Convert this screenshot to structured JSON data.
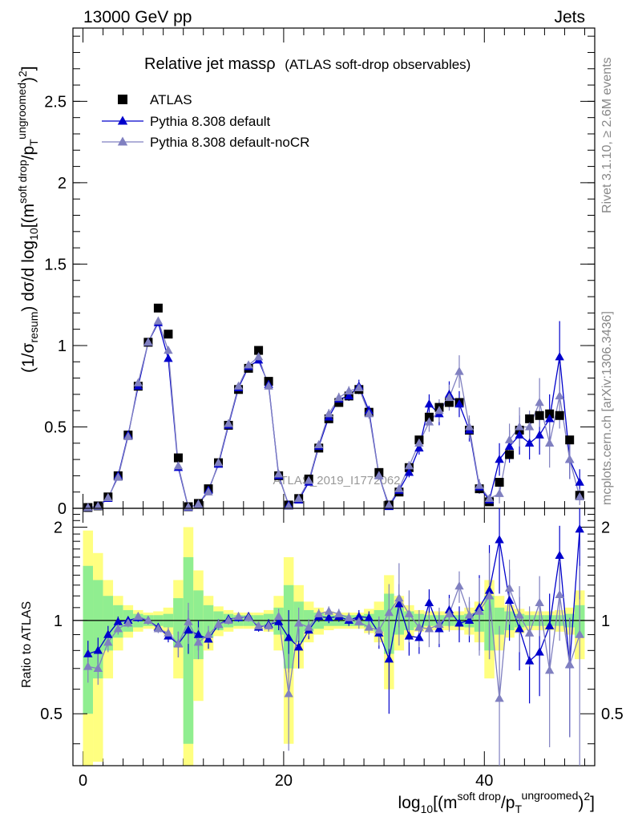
{
  "header": {
    "energy_label": "13000 GeV pp",
    "process_label": "Jets"
  },
  "side_labels": {
    "rivet": "Rivet 3.1.10, ≥ 2.6M events",
    "mcplots": "mcplots.cern.ch [arXiv:1306.3436]"
  },
  "watermark": "ATLAS_2019_I1772062",
  "chart_data": {
    "type": "scatter",
    "title": "Relative jet massρ",
    "subtitle": "(ATLAS soft-drop observables)",
    "ylabel": "(1/σresum) dσ/d log10[(m^{soft drop}/p_T^{ungroomed})^2]",
    "ylabel_parts": {
      "pre": "(1/σ",
      "sub1": "resum",
      "mid": ") dσ/d log",
      "sub2": "10",
      "mid2": "[(m",
      "sup1": "soft drop",
      "mid3": "/p",
      "sub3": "T",
      "sup2": "ungroomed",
      "mid4": ")",
      "sup3": "2",
      "post": "]"
    },
    "xlabel": "log10[(m^{soft drop}/p_T^{ungroomed})^2]",
    "xlabel_parts": {
      "pre": "log",
      "sub1": "10",
      "mid": "[(m",
      "sup1": "soft drop",
      "mid2": "/p",
      "sub2": "T",
      "sup2": "ungroomed",
      "mid3": ")",
      "sup3": "2",
      "post": "]"
    },
    "ratio_ylabel": "Ratio to ATLAS",
    "xlim": [
      -1,
      51
    ],
    "ylim": [
      0,
      2.95
    ],
    "ratio_ylim": [
      0.34,
      2.3
    ],
    "x_ticks": [
      0,
      20,
      40
    ],
    "y_ticks": [
      0,
      0.5,
      1,
      1.5,
      2,
      2.5
    ],
    "y_tick_labels": [
      "0",
      "0.5",
      "1",
      "1.5",
      "2",
      "2.5"
    ],
    "ratio_ticks": [
      0.5,
      1,
      2
    ],
    "ratio_tick_labels": [
      "0.5",
      "1",
      "2"
    ],
    "legend_position": "top-left",
    "series": [
      {
        "name": "ATLAS",
        "color": "#000000",
        "marker": "square",
        "x": [
          0.5,
          1.5,
          2.5,
          3.5,
          4.5,
          5.5,
          6.5,
          7.5,
          8.5,
          9.5,
          10.5,
          11.5,
          12.5,
          13.5,
          14.5,
          15.5,
          16.5,
          17.5,
          18.5,
          19.5,
          20.5,
          21.5,
          22.5,
          23.5,
          24.5,
          25.5,
          26.5,
          27.5,
          28.5,
          29.5,
          30.5,
          31.5,
          32.5,
          33.5,
          34.5,
          35.5,
          36.5,
          37.5,
          38.5,
          39.5,
          40.5,
          41.5,
          42.5,
          43.5,
          44.5,
          45.5,
          46.5,
          47.5,
          48.5,
          49.5
        ],
        "values": [
          0.005,
          0.015,
          0.07,
          0.2,
          0.45,
          0.75,
          1.02,
          1.23,
          1.07,
          0.31,
          0.01,
          0.03,
          0.12,
          0.28,
          0.51,
          0.73,
          0.86,
          0.97,
          0.78,
          0.2,
          0.02,
          0.06,
          0.18,
          0.37,
          0.55,
          0.65,
          0.69,
          0.73,
          0.59,
          0.22,
          0.02,
          0.1,
          0.25,
          0.42,
          0.56,
          0.62,
          0.65,
          0.65,
          0.48,
          0.12,
          0.04,
          0.16,
          0.33,
          0.48,
          0.55,
          0.57,
          0.58,
          0.57,
          0.42,
          0.08
        ]
      },
      {
        "name": "Pythia 8.308 default",
        "color": "#0000cc",
        "marker": "triangle",
        "x": [
          0.5,
          1.5,
          2.5,
          3.5,
          4.5,
          5.5,
          6.5,
          7.5,
          8.5,
          9.5,
          10.5,
          11.5,
          12.5,
          13.5,
          14.5,
          15.5,
          16.5,
          17.5,
          18.5,
          19.5,
          20.5,
          21.5,
          22.5,
          23.5,
          24.5,
          25.5,
          26.5,
          27.5,
          28.5,
          29.5,
          30.5,
          31.5,
          32.5,
          33.5,
          34.5,
          35.5,
          36.5,
          37.5,
          38.5,
          39.5,
          40.5,
          41.5,
          42.5,
          43.5,
          44.5,
          45.5,
          46.5,
          47.5,
          48.5,
          49.5
        ],
        "values": [
          0.004,
          0.012,
          0.06,
          0.2,
          0.45,
          0.75,
          1.02,
          1.14,
          0.92,
          0.25,
          0.005,
          0.025,
          0.11,
          0.27,
          0.51,
          0.74,
          0.87,
          0.91,
          0.76,
          0.2,
          0.02,
          0.05,
          0.16,
          0.38,
          0.56,
          0.67,
          0.69,
          0.75,
          0.6,
          0.2,
          0.01,
          0.11,
          0.22,
          0.37,
          0.64,
          0.58,
          0.7,
          0.64,
          0.48,
          0.13,
          0.05,
          0.3,
          0.38,
          0.45,
          0.4,
          0.45,
          0.55,
          0.93,
          0.3,
          0.16
        ],
        "err": [
          0.001,
          0.003,
          0.01,
          0.02,
          0.02,
          0.02,
          0.02,
          0.02,
          0.02,
          0.02,
          0.002,
          0.005,
          0.01,
          0.02,
          0.02,
          0.02,
          0.02,
          0.02,
          0.02,
          0.02,
          0.005,
          0.01,
          0.02,
          0.02,
          0.03,
          0.03,
          0.03,
          0.04,
          0.03,
          0.02,
          0.005,
          0.02,
          0.03,
          0.04,
          0.06,
          0.07,
          0.08,
          0.08,
          0.07,
          0.04,
          0.02,
          0.1,
          0.1,
          0.12,
          0.1,
          0.12,
          0.15,
          0.22,
          0.12,
          0.08
        ]
      },
      {
        "name": "Pythia 8.308 default-noCR",
        "color": "#8080c0",
        "marker": "triangle",
        "x": [
          0.5,
          1.5,
          2.5,
          3.5,
          4.5,
          5.5,
          6.5,
          7.5,
          8.5,
          9.5,
          10.5,
          11.5,
          12.5,
          13.5,
          14.5,
          15.5,
          16.5,
          17.5,
          18.5,
          19.5,
          20.5,
          21.5,
          22.5,
          23.5,
          24.5,
          25.5,
          26.5,
          27.5,
          28.5,
          29.5,
          30.5,
          31.5,
          32.5,
          33.5,
          34.5,
          35.5,
          36.5,
          37.5,
          38.5,
          39.5,
          40.5,
          41.5,
          42.5,
          43.5,
          44.5,
          45.5,
          46.5,
          47.5,
          48.5,
          49.5
        ],
        "values": [
          0.004,
          0.012,
          0.065,
          0.19,
          0.44,
          0.77,
          1.02,
          1.15,
          0.97,
          0.26,
          0.008,
          0.025,
          0.1,
          0.28,
          0.52,
          0.75,
          0.88,
          0.93,
          0.75,
          0.21,
          0.012,
          0.06,
          0.17,
          0.39,
          0.58,
          0.68,
          0.72,
          0.74,
          0.58,
          0.2,
          0.02,
          0.12,
          0.26,
          0.4,
          0.53,
          0.6,
          0.68,
          0.84,
          0.5,
          0.14,
          0.06,
          0.09,
          0.42,
          0.5,
          0.5,
          0.65,
          0.4,
          0.69,
          0.3,
          0.07
        ],
        "err": [
          0.001,
          0.003,
          0.01,
          0.02,
          0.02,
          0.02,
          0.02,
          0.02,
          0.02,
          0.02,
          0.002,
          0.005,
          0.01,
          0.02,
          0.02,
          0.02,
          0.02,
          0.02,
          0.02,
          0.02,
          0.005,
          0.01,
          0.02,
          0.02,
          0.03,
          0.03,
          0.03,
          0.04,
          0.03,
          0.02,
          0.005,
          0.02,
          0.03,
          0.04,
          0.06,
          0.07,
          0.08,
          0.1,
          0.07,
          0.04,
          0.02,
          0.06,
          0.1,
          0.12,
          0.1,
          0.15,
          0.15,
          0.2,
          0.12,
          0.05
        ]
      }
    ],
    "ratio": {
      "reference_line": 1,
      "band_inner_color": "#90ee90",
      "band_outer_color": "#ffff80",
      "band_x": [
        0.5,
        1.5,
        2.5,
        3.5,
        4.5,
        5.5,
        6.5,
        7.5,
        8.5,
        9.5,
        10.5,
        11.5,
        12.5,
        13.5,
        14.5,
        15.5,
        16.5,
        17.5,
        18.5,
        19.5,
        20.5,
        21.5,
        22.5,
        23.5,
        24.5,
        25.5,
        26.5,
        27.5,
        28.5,
        29.5,
        30.5,
        31.5,
        32.5,
        33.5,
        34.5,
        35.5,
        36.5,
        37.5,
        38.5,
        39.5,
        40.5,
        41.5,
        42.5,
        43.5,
        44.5,
        45.5,
        46.5,
        47.5,
        48.5,
        49.5
      ],
      "band_inner_half": [
        0.5,
        0.35,
        0.2,
        0.12,
        0.08,
        0.05,
        0.04,
        0.04,
        0.05,
        0.18,
        0.6,
        0.25,
        0.12,
        0.07,
        0.05,
        0.04,
        0.04,
        0.04,
        0.05,
        0.1,
        0.3,
        0.15,
        0.08,
        0.06,
        0.04,
        0.04,
        0.04,
        0.04,
        0.05,
        0.08,
        0.22,
        0.1,
        0.07,
        0.05,
        0.04,
        0.04,
        0.04,
        0.04,
        0.05,
        0.08,
        0.2,
        0.1,
        0.07,
        0.05,
        0.04,
        0.04,
        0.04,
        0.04,
        0.05,
        0.12
      ],
      "band_outer_half": [
        0.95,
        0.65,
        0.35,
        0.2,
        0.12,
        0.08,
        0.06,
        0.07,
        0.1,
        0.35,
        1.0,
        0.45,
        0.2,
        0.11,
        0.08,
        0.06,
        0.06,
        0.06,
        0.08,
        0.2,
        0.6,
        0.3,
        0.15,
        0.1,
        0.07,
        0.06,
        0.06,
        0.06,
        0.09,
        0.15,
        0.4,
        0.2,
        0.12,
        0.08,
        0.07,
        0.07,
        0.07,
        0.07,
        0.1,
        0.15,
        0.35,
        0.2,
        0.12,
        0.09,
        0.07,
        0.07,
        0.07,
        0.08,
        0.1,
        0.25
      ],
      "series": [
        {
          "name": "Pythia 8.308 default",
          "color": "#0000cc",
          "x": [
            0.5,
            1.5,
            2.5,
            3.5,
            4.5,
            5.5,
            6.5,
            7.5,
            8.5,
            9.5,
            10.5,
            11.5,
            12.5,
            13.5,
            14.5,
            15.5,
            16.5,
            17.5,
            18.5,
            19.5,
            20.5,
            21.5,
            22.5,
            23.5,
            24.5,
            25.5,
            26.5,
            27.5,
            28.5,
            29.5,
            30.5,
            31.5,
            32.5,
            33.5,
            34.5,
            35.5,
            36.5,
            37.5,
            38.5,
            39.5,
            40.5,
            41.5,
            42.5,
            43.5,
            44.5,
            45.5,
            46.5,
            47.5,
            48.5,
            49.5
          ],
          "values": [
            0.78,
            0.8,
            0.9,
            0.99,
            1.0,
            1.02,
            1.0,
            0.95,
            0.89,
            0.84,
            0.93,
            0.9,
            0.87,
            0.97,
            1.01,
            1.02,
            1.03,
            0.95,
            0.97,
            0.99,
            0.88,
            0.82,
            0.93,
            1.03,
            1.02,
            1.03,
            1.0,
            1.03,
            1.02,
            0.91,
            0.75,
            1.13,
            0.89,
            0.88,
            1.14,
            0.94,
            1.08,
            0.98,
            1.0,
            1.1,
            1.25,
            1.82,
            1.16,
            0.94,
            0.74,
            0.79,
            0.96,
            1.62,
            0.72,
            1.97
          ],
          "err": [
            0.08,
            0.08,
            0.06,
            0.04,
            0.03,
            0.03,
            0.03,
            0.03,
            0.04,
            0.08,
            0.15,
            0.1,
            0.06,
            0.04,
            0.03,
            0.03,
            0.03,
            0.03,
            0.04,
            0.06,
            0.2,
            0.12,
            0.06,
            0.04,
            0.04,
            0.04,
            0.04,
            0.05,
            0.05,
            0.1,
            0.25,
            0.18,
            0.12,
            0.1,
            0.12,
            0.12,
            0.13,
            0.13,
            0.15,
            0.3,
            0.5,
            0.6,
            0.3,
            0.25,
            0.2,
            0.22,
            0.26,
            0.4,
            0.3,
            0.8
          ]
        },
        {
          "name": "Pythia 8.308 default-noCR",
          "color": "#8080c0",
          "x": [
            0.5,
            1.5,
            2.5,
            3.5,
            4.5,
            5.5,
            6.5,
            7.5,
            8.5,
            9.5,
            10.5,
            11.5,
            12.5,
            13.5,
            14.5,
            15.5,
            16.5,
            17.5,
            18.5,
            19.5,
            20.5,
            21.5,
            22.5,
            23.5,
            24.5,
            25.5,
            26.5,
            27.5,
            28.5,
            29.5,
            30.5,
            31.5,
            32.5,
            33.5,
            34.5,
            35.5,
            36.5,
            37.5,
            38.5,
            39.5,
            40.5,
            41.5,
            42.5,
            43.5,
            44.5,
            45.5,
            46.5,
            47.5,
            48.5,
            49.5
          ],
          "values": [
            0.71,
            0.7,
            0.85,
            0.94,
            0.98,
            1.03,
            1.0,
            0.94,
            0.91,
            0.84,
            0.99,
            0.85,
            0.9,
            0.97,
            1.0,
            1.03,
            1.02,
            0.96,
            0.96,
            1.03,
            0.58,
            0.98,
            0.95,
            1.05,
            1.07,
            1.05,
            1.02,
            0.99,
            0.95,
            0.93,
            1.06,
            1.18,
            1.05,
            0.95,
            0.94,
            0.97,
            1.05,
            1.29,
            1.04,
            1.07,
            1.2,
            0.56,
            1.27,
            1.04,
            0.91,
            1.14,
            0.69,
            1.21,
            0.72,
            0.9
          ],
          "err": [
            0.08,
            0.08,
            0.06,
            0.04,
            0.03,
            0.03,
            0.03,
            0.03,
            0.04,
            0.08,
            0.15,
            0.1,
            0.06,
            0.04,
            0.03,
            0.03,
            0.03,
            0.03,
            0.04,
            0.06,
            0.2,
            0.12,
            0.06,
            0.04,
            0.04,
            0.04,
            0.04,
            0.05,
            0.05,
            0.1,
            0.25,
            0.35,
            0.2,
            0.13,
            0.12,
            0.13,
            0.13,
            0.15,
            0.15,
            0.3,
            0.45,
            0.4,
            0.3,
            0.25,
            0.2,
            0.25,
            0.3,
            0.35,
            0.3,
            0.6
          ]
        }
      ]
    }
  }
}
